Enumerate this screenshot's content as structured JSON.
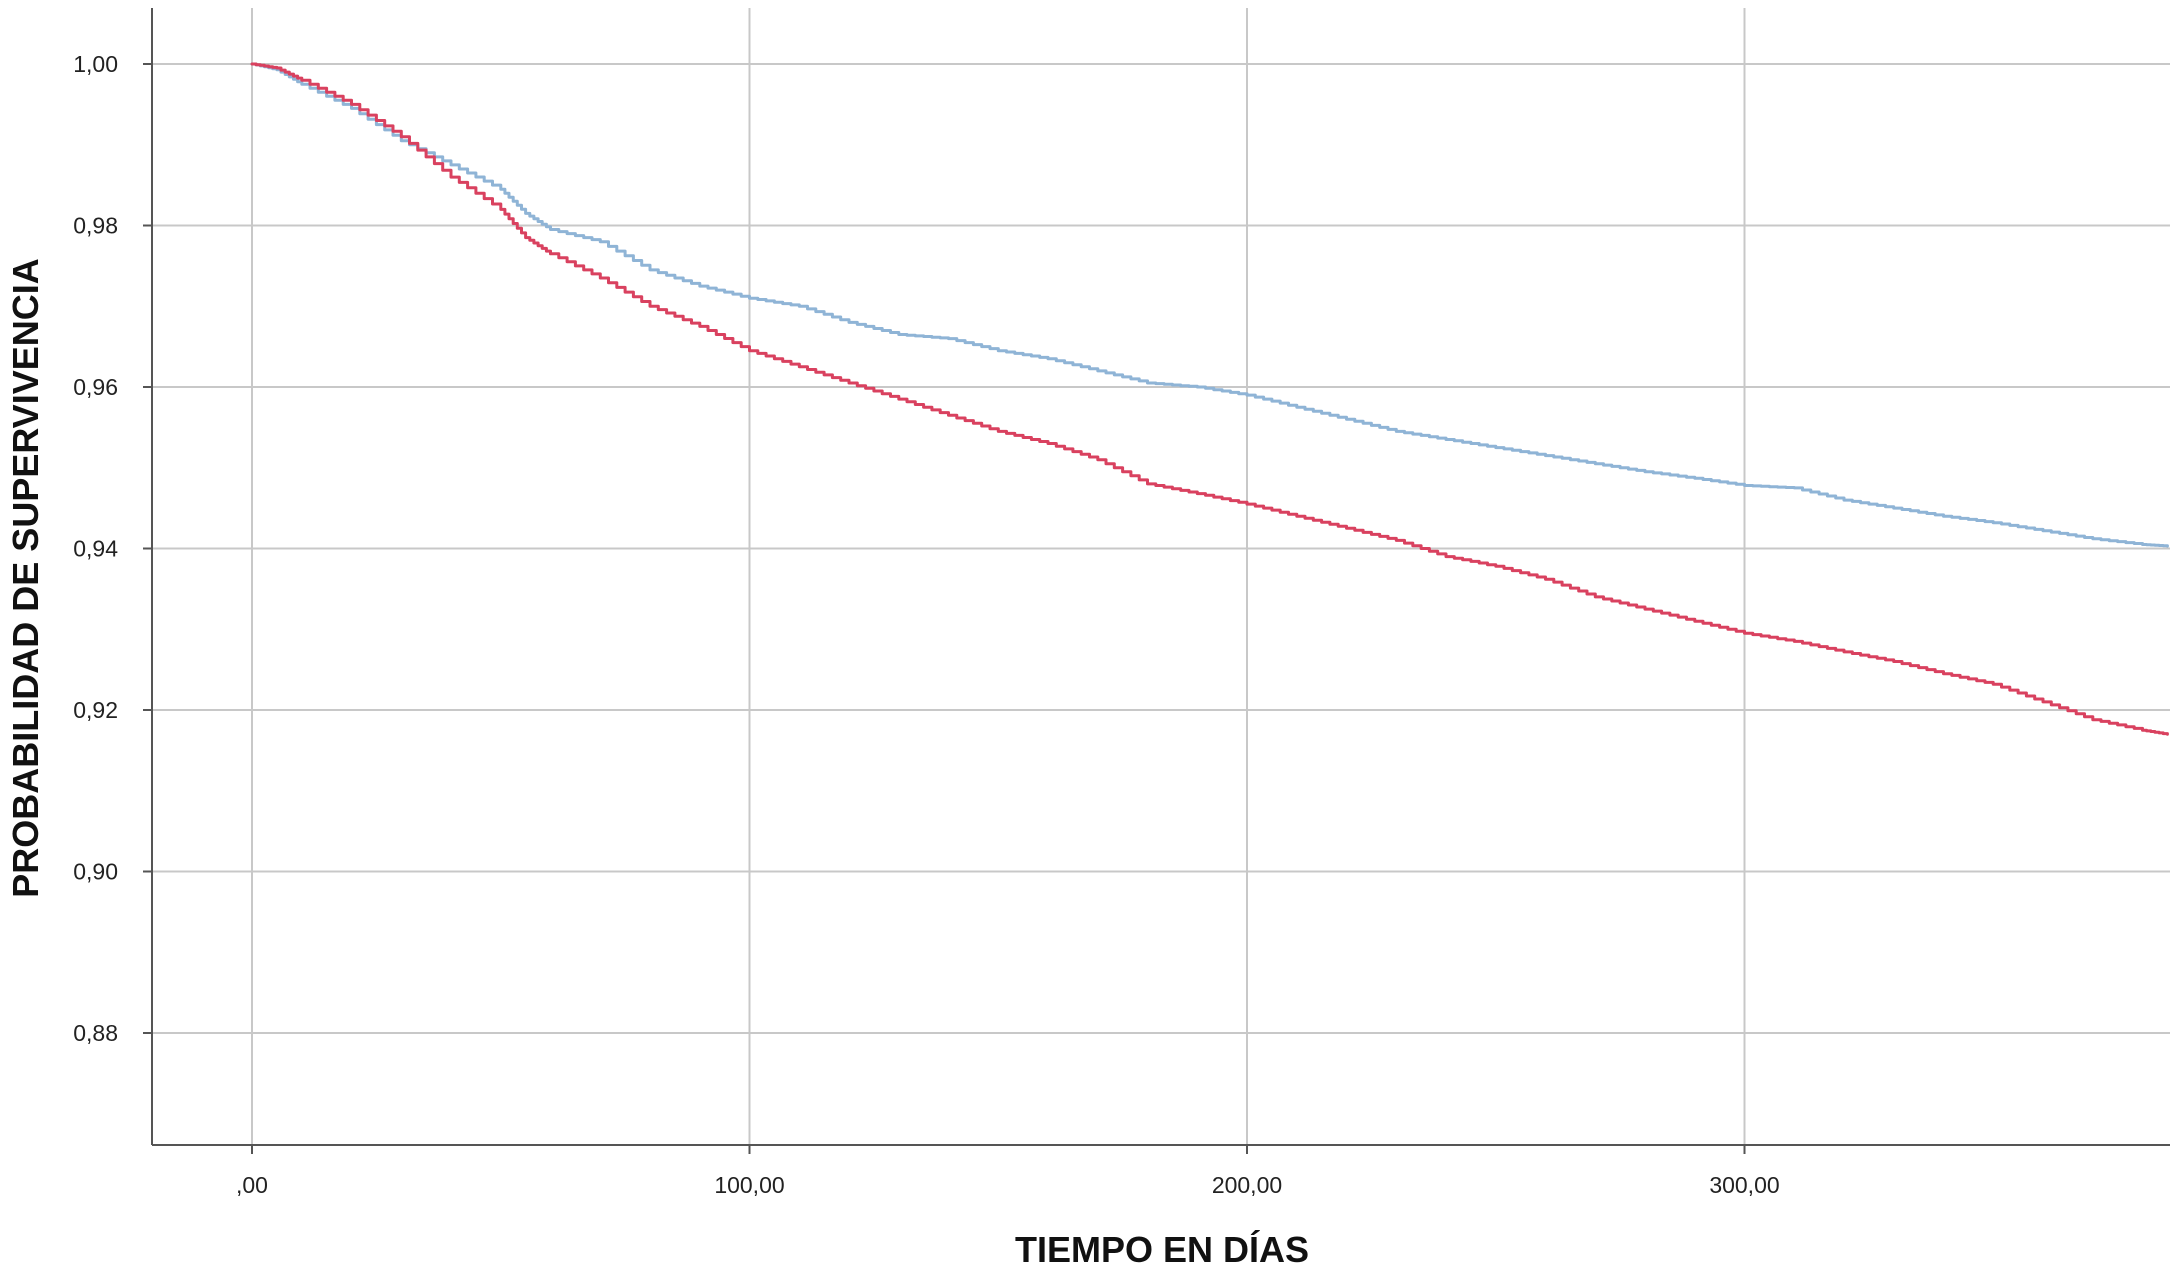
{
  "chart_data": {
    "type": "line",
    "title": "",
    "xlabel": "TIEMPO EN DÍAS",
    "ylabel": "PROBABILIDAD DE SUPERVIVENCIA",
    "xlim": [
      -20,
      385
    ],
    "ylim": [
      0.8665,
      1.007
    ],
    "x_ticks": [
      0,
      100,
      200,
      300
    ],
    "x_tick_labels": [
      ",00",
      "100,00",
      "200,00",
      "300,00"
    ],
    "y_ticks": [
      0.88,
      0.9,
      0.92,
      0.94,
      0.96,
      0.98,
      1.0
    ],
    "y_tick_labels": [
      "0,88",
      "0,90",
      "0,92",
      "0,94",
      "0,96",
      "0,98",
      "1,00"
    ],
    "grid": true,
    "legend": "none",
    "series": [
      {
        "color": "#8fb4d6",
        "x": [
          0,
          5,
          10,
          20,
          30,
          40,
          50,
          55,
          60,
          70,
          80,
          90,
          100,
          110,
          120,
          130,
          140,
          150,
          160,
          170,
          180,
          190,
          200,
          210,
          220,
          230,
          240,
          250,
          260,
          270,
          280,
          290,
          300,
          310,
          320,
          330,
          340,
          350,
          360,
          370,
          380,
          385
        ],
        "y": [
          1.0,
          0.9993,
          0.9975,
          0.9945,
          0.9905,
          0.9875,
          0.9845,
          0.9815,
          0.9795,
          0.978,
          0.9745,
          0.9725,
          0.971,
          0.97,
          0.968,
          0.9665,
          0.966,
          0.9645,
          0.9635,
          0.962,
          0.9605,
          0.96,
          0.959,
          0.9575,
          0.956,
          0.9545,
          0.9535,
          0.9525,
          0.9515,
          0.9505,
          0.9495,
          0.9487,
          0.9478,
          0.9475,
          0.946,
          0.945,
          0.944,
          0.9432,
          0.9422,
          0.9412,
          0.9405,
          0.9403
        ]
      },
      {
        "color": "#d9415f",
        "x": [
          0,
          5,
          10,
          20,
          30,
          40,
          50,
          55,
          60,
          70,
          80,
          90,
          100,
          110,
          120,
          130,
          140,
          150,
          160,
          170,
          180,
          190,
          200,
          210,
          220,
          230,
          240,
          250,
          260,
          270,
          280,
          290,
          300,
          310,
          320,
          330,
          340,
          350,
          360,
          370,
          380,
          385
        ],
        "y": [
          1.0,
          0.9995,
          0.998,
          0.995,
          0.991,
          0.986,
          0.982,
          0.9785,
          0.9765,
          0.9735,
          0.97,
          0.9675,
          0.9645,
          0.9625,
          0.9605,
          0.9585,
          0.9565,
          0.9545,
          0.953,
          0.951,
          0.948,
          0.9468,
          0.9455,
          0.944,
          0.9425,
          0.941,
          0.939,
          0.9378,
          0.9362,
          0.934,
          0.9325,
          0.931,
          0.9295,
          0.9285,
          0.9272,
          0.926,
          0.9245,
          0.9232,
          0.921,
          0.9188,
          0.9175,
          0.917
        ]
      }
    ]
  }
}
